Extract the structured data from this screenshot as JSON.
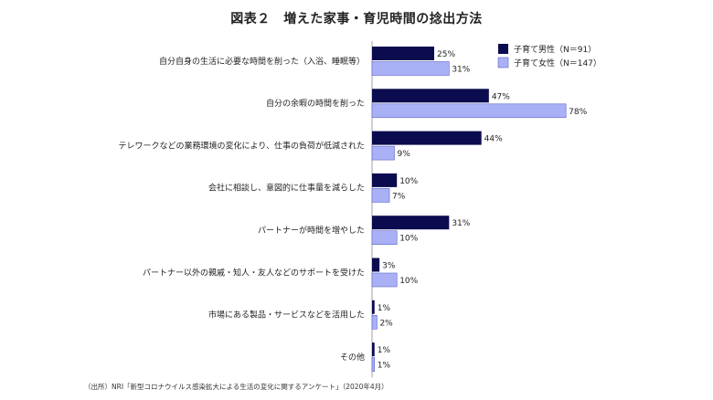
{
  "chart_data": {
    "type": "bar",
    "orientation": "horizontal",
    "title": "図表２　増えた家事・育児時間の捻出方法",
    "categories": [
      "自分自身の生活に必要な時間を削った（入浴、睡眠等）",
      "自分の余暇の時間を削った",
      "テレワークなどの業務環境の変化により、仕事の負荷が低減された",
      "会社に相談し、意図的に仕事量を減らした",
      "パートナーが時間を増やした",
      "パートナー以外の親戚・知人・友人などのサポートを受けた",
      "市場にある製品・サービスなどを活用した",
      "その他"
    ],
    "series": [
      {
        "name": "子育て男性（N＝91）",
        "color": "#0b0b4f",
        "values": [
          25,
          47,
          44,
          10,
          31,
          3,
          1,
          1
        ]
      },
      {
        "name": "子育て女性（N＝147）",
        "color": "#aab0f5",
        "values": [
          31,
          78,
          9,
          7,
          10,
          10,
          2,
          1
        ]
      }
    ],
    "value_suffix": "%",
    "xlim": [
      0,
      100
    ],
    "legend_position": "top-right",
    "grid": false
  },
  "source": "（出所）NRI「新型コロナウイルス感染拡大による生活の変化に関するアンケート」（2020年4月）"
}
